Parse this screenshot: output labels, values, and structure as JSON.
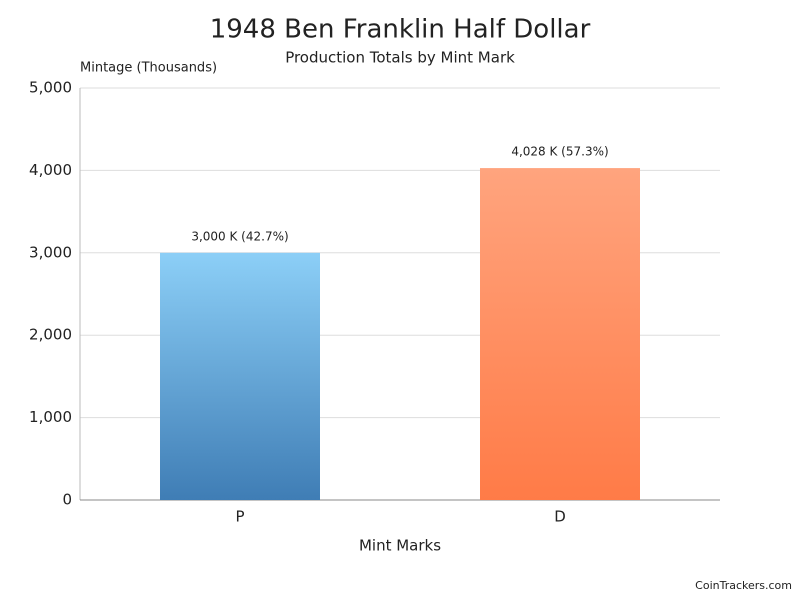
{
  "chart_data": {
    "type": "bar",
    "title": "1948 Ben Franklin Half Dollar",
    "subtitle": "Production Totals by Mint Mark",
    "y_label": "Mintage (Thousands)",
    "x_label": "Mint Marks",
    "categories": [
      "P",
      "D"
    ],
    "values": [
      3000,
      4028
    ],
    "value_labels": [
      "3,000 K (42.7%)",
      "4,028 K (57.3%)"
    ],
    "colors": [
      {
        "top": "#8ccff7",
        "bottom": "#3f7db5"
      },
      {
        "top": "#ffa47e",
        "bottom": "#ff7b47"
      }
    ],
    "ylim": [
      0,
      5000
    ],
    "yticks": [
      0,
      {
        "value": 1000,
        "label": "1,000"
      },
      {
        "value": 2000,
        "label": "2,000"
      },
      {
        "value": 3000,
        "label": "3,000"
      },
      {
        "value": 4000,
        "label": "4,000"
      },
      {
        "value": 5000,
        "label": "5,000"
      }
    ],
    "grid": true,
    "footer": "CoinTrackers.com"
  }
}
